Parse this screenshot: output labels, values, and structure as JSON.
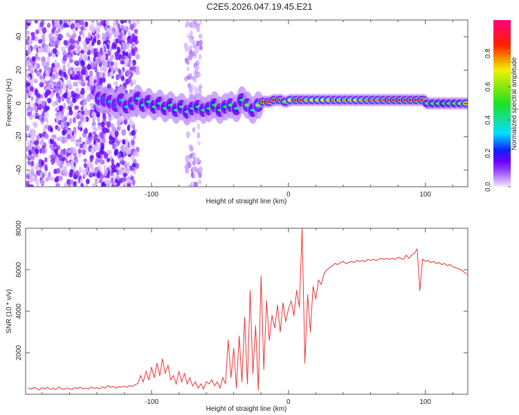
{
  "title": "C2E5.2026.047.19.45.E21",
  "chart_data": [
    {
      "type": "heatmap",
      "title": "C2E5.2026.047.19.45.E21",
      "xlabel": "Height of straight line (km)",
      "ylabel": "Frequency (Hz)",
      "xlim": [
        -192,
        131
      ],
      "ylim": [
        -50,
        50
      ],
      "xticks": [
        -100,
        0,
        100
      ],
      "yticks": [
        -40,
        -20,
        0,
        20,
        40
      ],
      "colorbar": {
        "label": "Normalized spectral amplitude",
        "range": [
          0,
          1
        ],
        "ticks": [
          "0.0",
          "0.2",
          "0.4",
          "0.6",
          "0.8"
        ],
        "colormap": [
          "#f4eaff",
          "#9040ff",
          "#7000ff",
          "#1020ff",
          "#00e0ff",
          "#20e020",
          "#f0f000",
          "#ff2000",
          "#ff0080"
        ]
      },
      "noise_regions": [
        {
          "x_range": [
            -192,
            -110
          ],
          "f_range": [
            -50,
            50
          ],
          "amplitude": 0.12
        },
        {
          "x_range": [
            -75,
            -64
          ],
          "f_range": [
            -50,
            50
          ],
          "amplitude": 0.05
        }
      ],
      "ridge": [
        [
          -138,
          3,
          0.3
        ],
        [
          -134,
          2,
          0.25
        ],
        [
          -130,
          1,
          0.3
        ],
        [
          -126,
          -1,
          0.25
        ],
        [
          -122,
          2,
          0.3
        ],
        [
          -118,
          -2,
          0.35
        ],
        [
          -114,
          0,
          0.3
        ],
        [
          -110,
          3,
          0.4
        ],
        [
          -106,
          -1,
          0.35
        ],
        [
          -102,
          1,
          0.4
        ],
        [
          -98,
          -2,
          0.45
        ],
        [
          -94,
          0,
          0.4
        ],
        [
          -90,
          -3,
          0.4
        ],
        [
          -86,
          -1,
          0.45
        ],
        [
          -82,
          -4,
          0.4
        ],
        [
          -78,
          -2,
          0.45
        ],
        [
          -74,
          -5,
          0.35
        ],
        [
          -70,
          -3,
          0.4
        ],
        [
          -66,
          -2,
          0.45
        ],
        [
          -62,
          -4,
          0.4
        ],
        [
          -58,
          -3,
          0.45
        ],
        [
          -54,
          -1,
          0.5
        ],
        [
          -50,
          -4,
          0.45
        ],
        [
          -46,
          -2,
          0.5
        ],
        [
          -42,
          -1,
          0.55
        ],
        [
          -38,
          -3,
          0.4
        ],
        [
          -34,
          2,
          0.5
        ],
        [
          -30,
          -1,
          0.6
        ],
        [
          -26,
          -4,
          0.35
        ],
        [
          -22,
          -1,
          0.65
        ],
        [
          -18,
          1,
          0.85
        ],
        [
          -14,
          1,
          0.9
        ],
        [
          -10,
          2,
          0.92
        ],
        [
          -6,
          2,
          0.95
        ],
        [
          -2,
          1,
          0.6
        ],
        [
          2,
          2,
          0.7
        ],
        [
          6,
          2,
          0.85
        ],
        [
          10,
          2,
          0.85
        ],
        [
          14,
          2,
          0.75
        ],
        [
          18,
          2,
          0.7
        ],
        [
          22,
          2,
          0.72
        ],
        [
          26,
          2,
          0.7
        ],
        [
          30,
          2,
          0.72
        ],
        [
          34,
          2,
          0.8
        ],
        [
          38,
          2,
          0.75
        ],
        [
          42,
          2,
          0.78
        ],
        [
          46,
          2,
          0.75
        ],
        [
          50,
          2,
          0.72
        ],
        [
          54,
          2,
          0.75
        ],
        [
          58,
          2,
          0.78
        ],
        [
          62,
          2,
          0.8
        ],
        [
          66,
          2,
          0.78
        ],
        [
          70,
          2,
          0.82
        ],
        [
          74,
          2,
          0.85
        ],
        [
          78,
          2,
          0.88
        ],
        [
          82,
          2,
          0.9
        ],
        [
          86,
          2,
          0.9
        ],
        [
          90,
          2,
          0.9
        ],
        [
          94,
          2,
          0.88
        ],
        [
          98,
          2,
          0.85
        ],
        [
          102,
          0,
          0.55
        ],
        [
          106,
          0,
          0.55
        ],
        [
          110,
          0,
          0.55
        ],
        [
          114,
          0,
          0.5
        ],
        [
          118,
          0,
          0.55
        ],
        [
          122,
          0,
          0.55
        ],
        [
          126,
          0,
          0.6
        ],
        [
          130,
          0,
          0.75
        ]
      ]
    },
    {
      "type": "line",
      "xlabel": "Height of straight line (km)",
      "ylabel": "SNR (10 * v/v)",
      "xlim": [
        -192,
        131
      ],
      "ylim": [
        0,
        8000
      ],
      "xticks": [
        -100,
        0,
        100
      ],
      "yticks": [
        2000,
        4000,
        6000,
        8000
      ],
      "color": "#f03030",
      "x_start": -190,
      "x_step": 2,
      "values": [
        300,
        250,
        320,
        280,
        200,
        310,
        260,
        330,
        240,
        290,
        220,
        350,
        270,
        230,
        300,
        260,
        240,
        310,
        280,
        330,
        260,
        300,
        250,
        340,
        290,
        310,
        270,
        360,
        300,
        420,
        330,
        380,
        300,
        360,
        340,
        400,
        330,
        420,
        380,
        460,
        520,
        900,
        600,
        1100,
        700,
        1300,
        800,
        1500,
        900,
        1700,
        1000,
        1400,
        700,
        900,
        500,
        1100,
        600,
        1000,
        500,
        800,
        400,
        600,
        300,
        500,
        250,
        600,
        500,
        700,
        400,
        600,
        300,
        800,
        500,
        2600,
        800,
        2200,
        300,
        2800,
        600,
        3700,
        500,
        5000,
        1000,
        3300,
        200,
        5700,
        1200,
        4500,
        2600,
        3800,
        3200,
        4300,
        3000,
        4400,
        3500,
        4100,
        4500,
        3800,
        5000,
        4200,
        8000,
        1500,
        4800,
        3000,
        5200,
        4600,
        5500,
        5300,
        5800,
        6000,
        6100,
        6200,
        6300,
        6250,
        6350,
        6400,
        6300,
        6350,
        6400,
        6350,
        6450,
        6400,
        6450,
        6400,
        6500,
        6450,
        6500,
        6450,
        6500,
        6550,
        6500,
        6550,
        6500,
        6550,
        6500,
        6600,
        6550,
        6500,
        6700,
        6550,
        6700,
        6800,
        7000,
        5000,
        6500,
        6400,
        6450,
        6350,
        6400,
        6300,
        6350,
        6250,
        6300,
        6200,
        6250,
        6150,
        6100,
        6050,
        6000,
        5900,
        5800
      ]
    }
  ]
}
